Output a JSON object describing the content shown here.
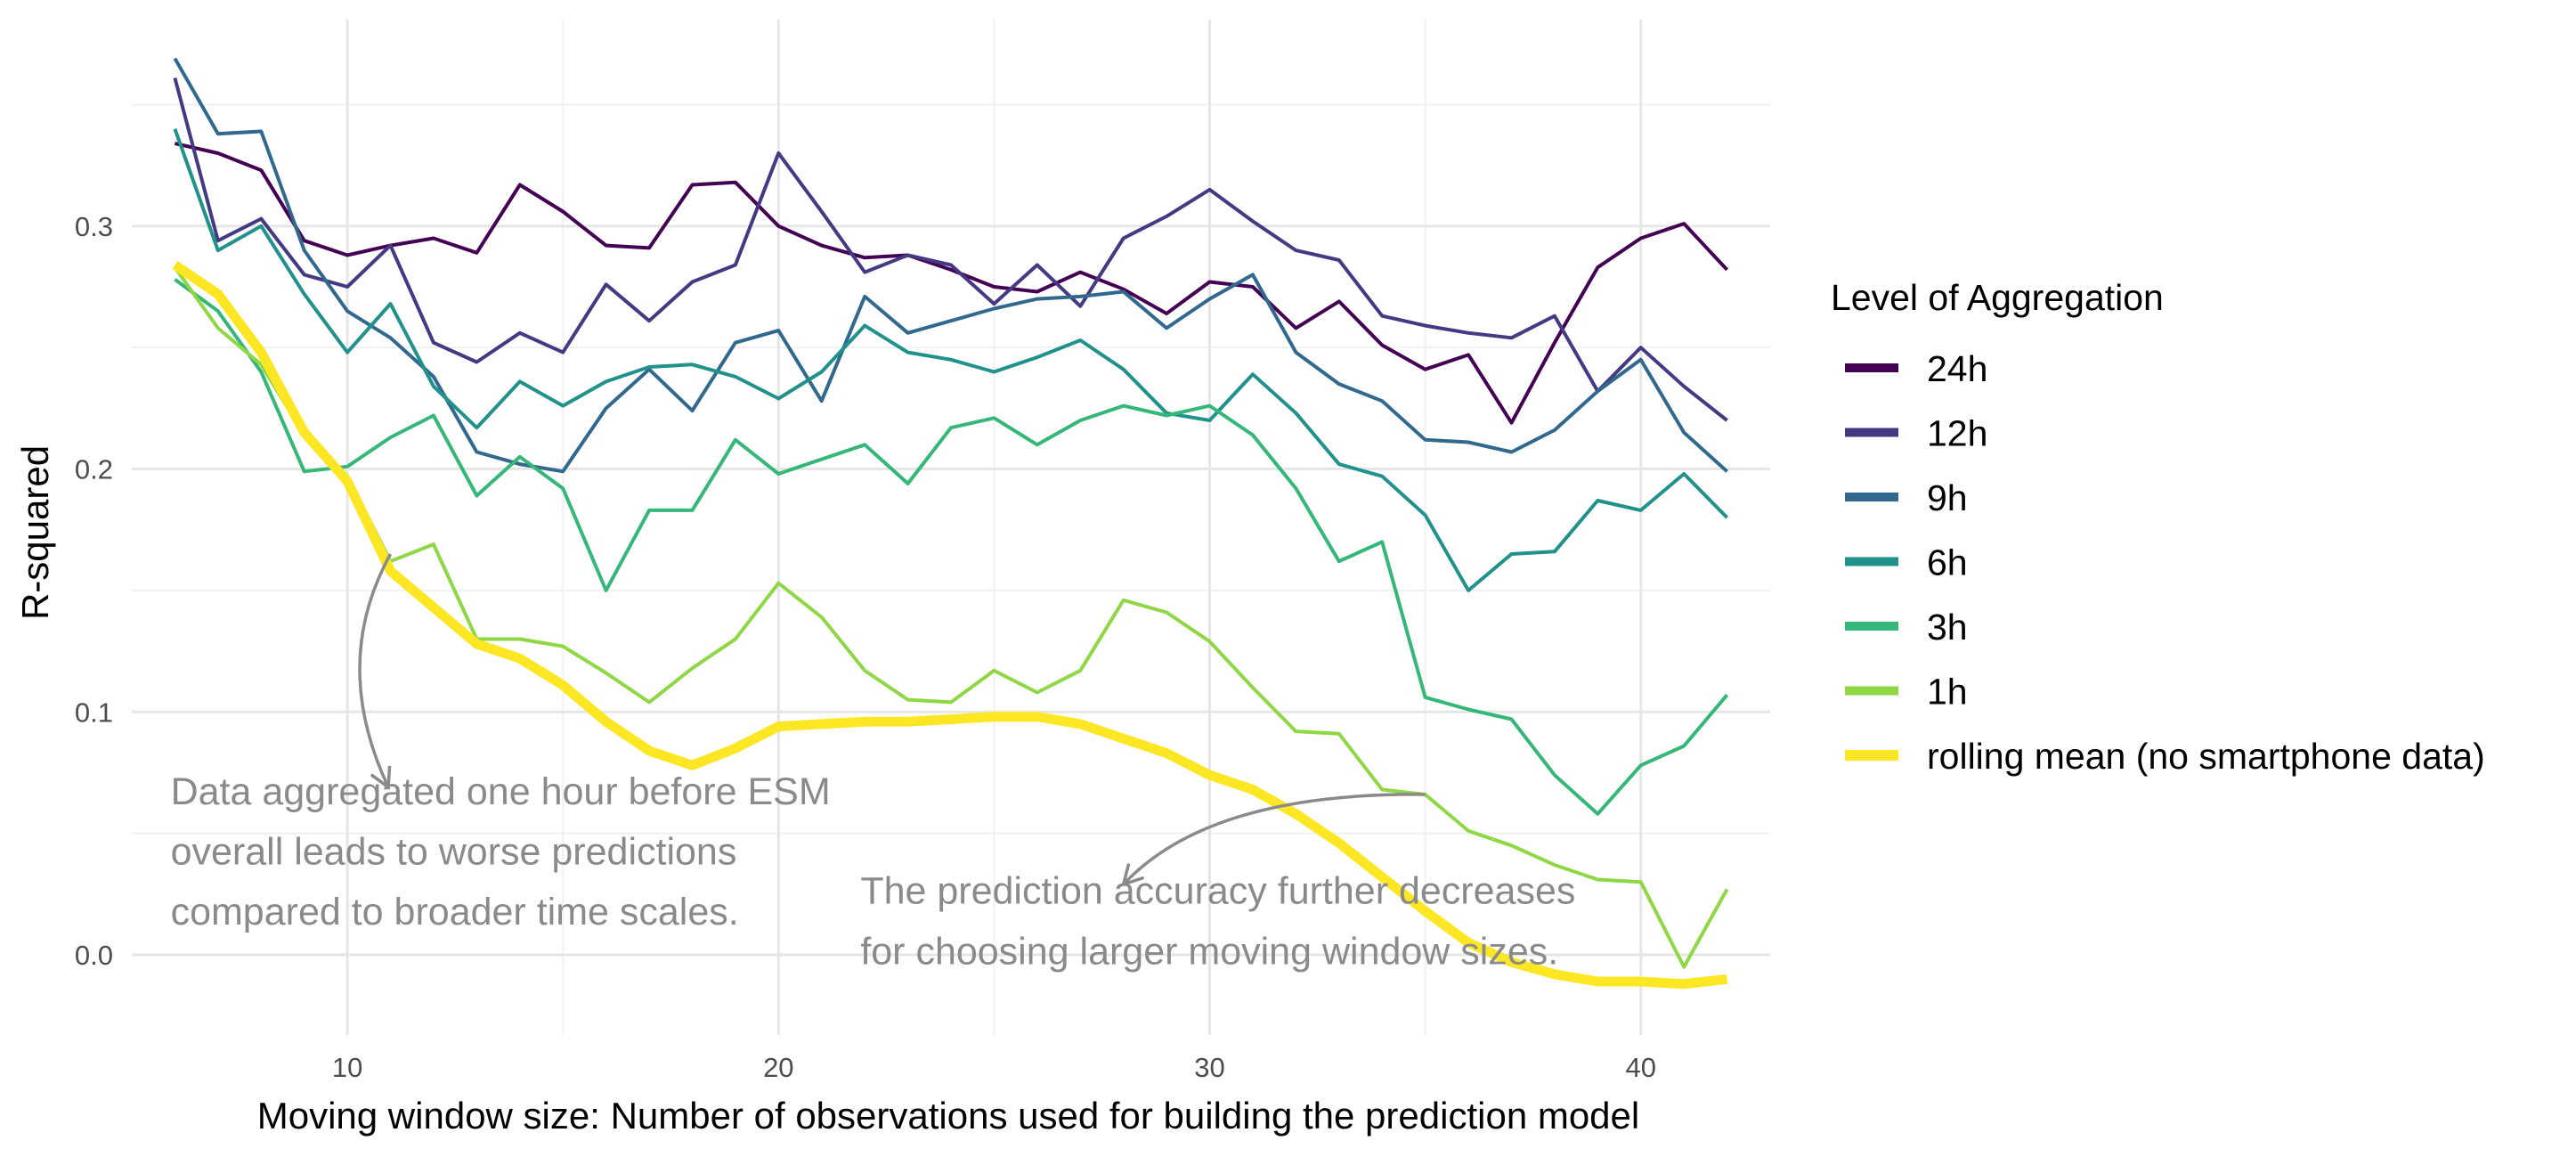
{
  "chart_data": {
    "type": "line",
    "title": "",
    "xlabel": "Moving window size: Number of observations used for building the prediction model",
    "ylabel": "R-squared",
    "xlim": [
      5,
      43
    ],
    "ylim": [
      -0.033,
      0.385
    ],
    "x_ticks": [
      10,
      20,
      30,
      40
    ],
    "x_tick_labels": [
      "10",
      "20",
      "30",
      "40"
    ],
    "y_ticks": [
      0.0,
      0.1,
      0.2,
      0.3
    ],
    "y_tick_labels": [
      "0.0",
      "0.1",
      "0.2",
      "0.3"
    ],
    "grid": true,
    "legend": {
      "title": "Level of Aggregation",
      "position": "right"
    },
    "x": [
      6,
      7,
      8,
      9,
      10,
      11,
      12,
      13,
      14,
      15,
      16,
      17,
      18,
      19,
      20,
      21,
      22,
      23,
      24,
      25,
      26,
      27,
      28,
      29,
      30,
      31,
      32,
      33,
      34,
      35,
      36,
      37,
      38,
      39,
      40,
      41,
      42
    ],
    "series": [
      {
        "name": "24h",
        "color": "#440154",
        "width": 4,
        "values": [
          0.334,
          0.33,
          0.323,
          0.294,
          0.288,
          0.292,
          0.295,
          0.289,
          0.317,
          0.306,
          0.292,
          0.291,
          0.317,
          0.318,
          0.3,
          0.292,
          0.287,
          0.288,
          0.282,
          0.275,
          0.273,
          0.281,
          0.274,
          0.264,
          0.277,
          0.275,
          0.258,
          0.269,
          0.251,
          0.241,
          0.247,
          0.219,
          0.252,
          0.283,
          0.295,
          0.301,
          0.282
        ]
      },
      {
        "name": "12h",
        "color": "#443983",
        "width": 4,
        "values": [
          0.361,
          0.294,
          0.303,
          0.28,
          0.275,
          0.292,
          0.252,
          0.244,
          0.256,
          0.248,
          0.276,
          0.261,
          0.277,
          0.284,
          0.33,
          0.306,
          0.281,
          0.288,
          0.284,
          0.268,
          0.284,
          0.267,
          0.295,
          0.304,
          0.315,
          0.302,
          0.29,
          0.286,
          0.263,
          0.259,
          0.256,
          0.254,
          0.263,
          0.232,
          0.25,
          0.234,
          0.22
        ]
      },
      {
        "name": "9h",
        "color": "#31688e",
        "width": 4,
        "values": [
          0.369,
          0.338,
          0.339,
          0.29,
          0.265,
          0.254,
          0.238,
          0.207,
          0.202,
          0.199,
          0.225,
          0.241,
          0.224,
          0.252,
          0.257,
          0.228,
          0.271,
          0.256,
          0.261,
          0.266,
          0.27,
          0.271,
          0.273,
          0.258,
          0.27,
          0.28,
          0.248,
          0.235,
          0.228,
          0.212,
          0.211,
          0.207,
          0.216,
          0.232,
          0.245,
          0.215,
          0.199
        ]
      },
      {
        "name": "6h",
        "color": "#21918c",
        "width": 4,
        "values": [
          0.34,
          0.29,
          0.3,
          0.272,
          0.248,
          0.268,
          0.234,
          0.217,
          0.236,
          0.226,
          0.236,
          0.242,
          0.243,
          0.238,
          0.229,
          0.24,
          0.259,
          0.248,
          0.245,
          0.24,
          0.246,
          0.253,
          0.241,
          0.223,
          0.22,
          0.239,
          0.223,
          0.202,
          0.197,
          0.181,
          0.15,
          0.165,
          0.166,
          0.187,
          0.183,
          0.198,
          0.18
        ]
      },
      {
        "name": "3h",
        "color": "#35b779",
        "width": 4,
        "values": [
          0.278,
          0.265,
          0.24,
          0.199,
          0.201,
          0.213,
          0.222,
          0.189,
          0.205,
          0.192,
          0.15,
          0.183,
          0.183,
          0.212,
          0.198,
          0.204,
          0.21,
          0.194,
          0.217,
          0.221,
          0.21,
          0.22,
          0.226,
          0.222,
          0.226,
          0.214,
          0.192,
          0.162,
          0.17,
          0.106,
          0.101,
          0.097,
          0.074,
          0.058,
          0.078,
          0.086,
          0.107
        ]
      },
      {
        "name": "1h",
        "color": "#8fd744",
        "width": 4,
        "values": [
          0.283,
          0.258,
          0.243,
          0.214,
          0.197,
          0.162,
          0.169,
          0.13,
          0.13,
          0.127,
          0.116,
          0.104,
          0.118,
          0.13,
          0.153,
          0.139,
          0.117,
          0.105,
          0.104,
          0.117,
          0.108,
          0.117,
          0.146,
          0.141,
          0.129,
          0.11,
          0.092,
          0.091,
          0.068,
          0.066,
          0.051,
          0.045,
          0.037,
          0.031,
          0.03,
          -0.005,
          0.027
        ]
      },
      {
        "name": "rolling mean (no smartphone data)",
        "color": "#fde725",
        "width": 11,
        "values": [
          0.284,
          0.272,
          0.248,
          0.215,
          0.195,
          0.158,
          0.143,
          0.128,
          0.122,
          0.111,
          0.096,
          0.084,
          0.078,
          0.085,
          0.094,
          0.095,
          0.096,
          0.096,
          0.097,
          0.098,
          0.098,
          0.095,
          0.089,
          0.083,
          0.074,
          0.068,
          0.058,
          0.046,
          0.032,
          0.018,
          0.005,
          -0.003,
          -0.008,
          -0.011,
          -0.011,
          -0.012,
          -0.01
        ]
      }
    ],
    "annotations": [
      {
        "lines": [
          "Data aggregated one hour before ESM",
          "overall leads to worse predictions",
          "compared to broader time scales."
        ],
        "text_x": 5.9,
        "text_y": 0.062,
        "line_step": 0.0248,
        "arrow_from": [
          11.0,
          0.165
        ],
        "arrow_ctrl": [
          9.6,
          0.12
        ],
        "arrow_to": [
          10.95,
          0.069
        ]
      },
      {
        "lines": [
          "The prediction accuracy further decreases",
          "for choosing larger moving window sizes."
        ],
        "text_x": 21.9,
        "text_y": 0.021,
        "line_step": 0.0248,
        "arrow_from": [
          35.0,
          0.066
        ],
        "arrow_ctrl": [
          30.0,
          0.067
        ],
        "arrow_to": [
          28.0,
          0.029
        ]
      }
    ]
  }
}
